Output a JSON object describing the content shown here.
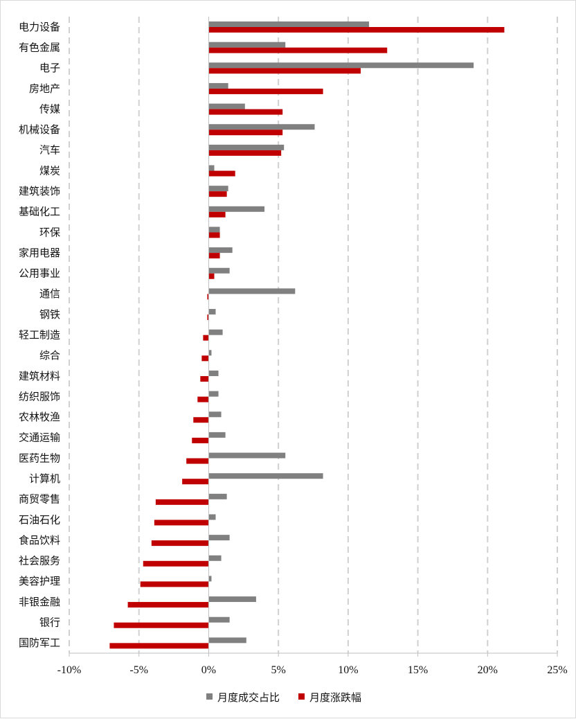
{
  "chart_data": {
    "type": "bar",
    "orientation": "horizontal",
    "categories": [
      "电力设备",
      "有色金属",
      "电子",
      "房地产",
      "传媒",
      "机械设备",
      "汽车",
      "煤炭",
      "建筑装饰",
      "基础化工",
      "环保",
      "家用电器",
      "公用事业",
      "通信",
      "钢铁",
      "轻工制造",
      "综合",
      "建筑材料",
      "纺织服饰",
      "农林牧渔",
      "交通运输",
      "医药生物",
      "计算机",
      "商贸零售",
      "石油石化",
      "食品饮料",
      "社会服务",
      "美容护理",
      "非银金融",
      "银行",
      "国防军工"
    ],
    "series": [
      {
        "name": "月度成交占比",
        "color": "#808080",
        "values": [
          11.5,
          5.5,
          19.0,
          1.4,
          2.6,
          7.6,
          5.4,
          0.4,
          1.4,
          4.0,
          0.8,
          1.7,
          1.5,
          6.2,
          0.5,
          1.0,
          0.2,
          0.7,
          0.7,
          0.9,
          1.2,
          5.5,
          8.2,
          1.3,
          0.5,
          1.5,
          0.9,
          0.2,
          3.4,
          1.5,
          2.7
        ]
      },
      {
        "name": "月度涨跌幅",
        "color": "#c00000",
        "values": [
          21.2,
          12.8,
          10.9,
          8.2,
          5.3,
          5.3,
          5.2,
          1.9,
          1.3,
          1.2,
          0.8,
          0.8,
          0.4,
          -0.1,
          -0.1,
          -0.4,
          -0.5,
          -0.6,
          -0.8,
          -1.1,
          -1.2,
          -1.6,
          -1.9,
          -3.8,
          -3.9,
          -4.1,
          -4.7,
          -4.9,
          -5.8,
          -6.8,
          -7.1
        ]
      }
    ],
    "x_ticks": [
      "-10%",
      "-5%",
      "0%",
      "5%",
      "10%",
      "15%",
      "20%",
      "25%"
    ],
    "xlim": [
      -10,
      25
    ],
    "grid": "vertical dashed",
    "legend_position": "bottom"
  }
}
